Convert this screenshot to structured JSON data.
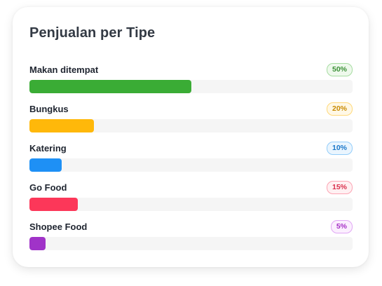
{
  "card": {
    "title": "Penjualan per Tipe"
  },
  "rows": [
    {
      "label": "Makan ditempat",
      "percent": 50,
      "percent_label": "50%",
      "color": "#3aac35",
      "badge_bg": "#eef9ec",
      "badge_border": "#a6dca1",
      "badge_text": "#3a8f35"
    },
    {
      "label": "Bungkus",
      "percent": 20,
      "percent_label": "20%",
      "color": "#ffb80a",
      "badge_bg": "#fff8e6",
      "badge_border": "#ffd97a",
      "badge_text": "#c98a00"
    },
    {
      "label": "Katering",
      "percent": 10,
      "percent_label": "10%",
      "color": "#1e90f5",
      "badge_bg": "#eaf5fe",
      "badge_border": "#93cdfa",
      "badge_text": "#1977c9"
    },
    {
      "label": "Go Food",
      "percent": 15,
      "percent_label": "15%",
      "color": "#fc3759",
      "badge_bg": "#fff0f2",
      "badge_border": "#fda4b3",
      "badge_text": "#d9304c"
    },
    {
      "label": "Shopee Food",
      "percent": 5,
      "percent_label": "5%",
      "color": "#a033c8",
      "badge_bg": "#fbeffe",
      "badge_border": "#e1a6f5",
      "badge_text": "#a52fc5"
    }
  ]
}
